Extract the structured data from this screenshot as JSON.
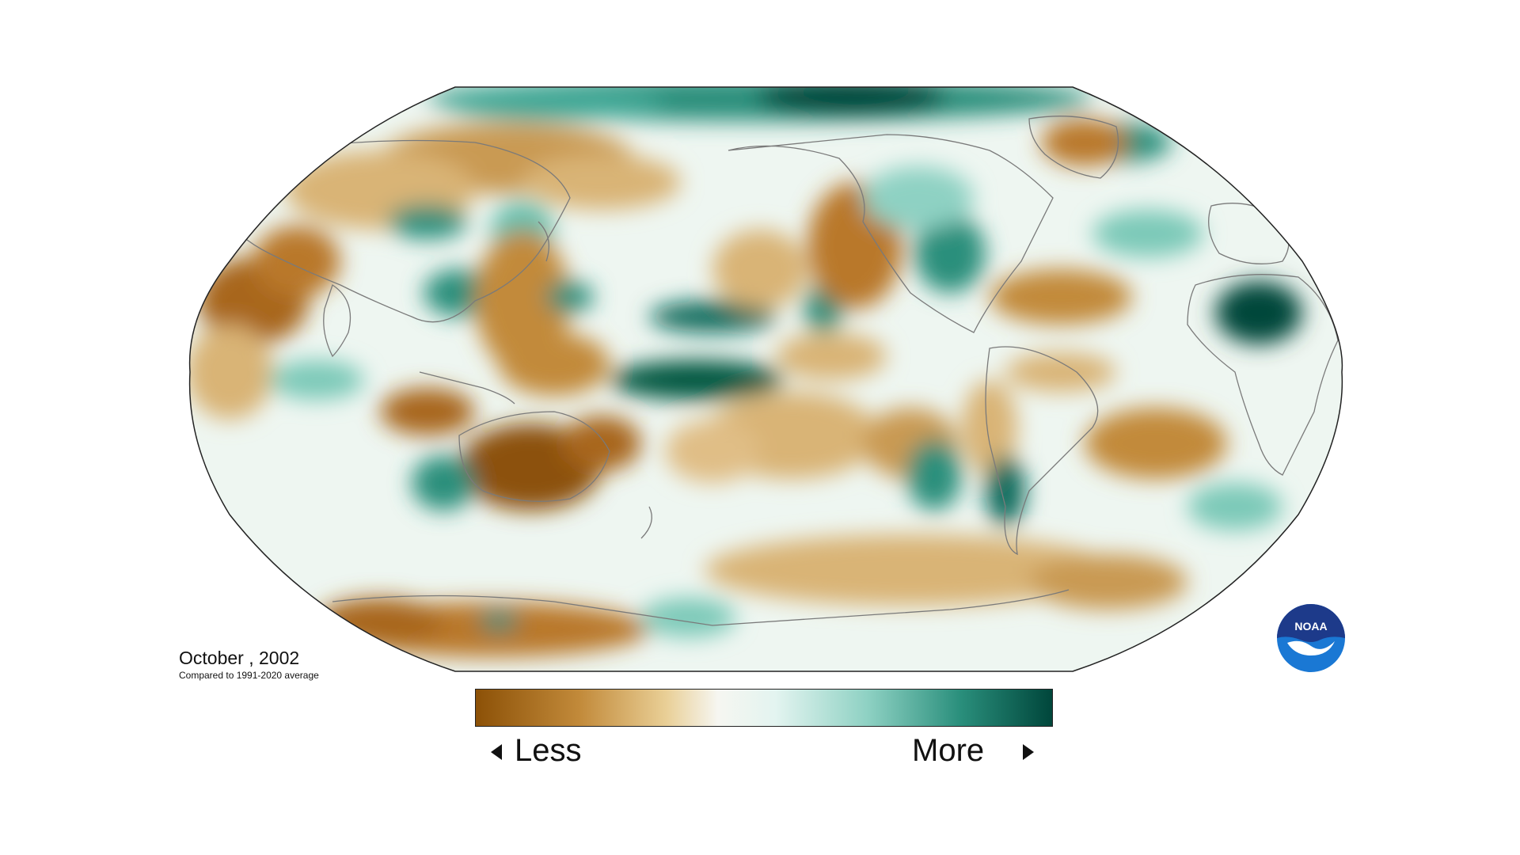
{
  "map": {
    "caption_title": "October , 2002",
    "caption_subtitle": "Compared to 1991-2020 average",
    "projection": "robinson",
    "legend": {
      "left_label": "Less",
      "right_label": "More",
      "colors": {
        "dry_dark": "#8c5107",
        "dry_mid": "#c28a3a",
        "dry_light": "#e9cf96",
        "neutral": "#f6f6f1",
        "wet_light": "#c7ebe3",
        "wet_mid": "#5fbfae",
        "wet_dark": "#00463b"
      }
    },
    "logo": {
      "text": "NOAA",
      "icon": "noaa-logo-icon",
      "colors": {
        "navy": "#1d3a8a",
        "blue": "#1a78d4",
        "white": "#ffffff"
      }
    }
  }
}
